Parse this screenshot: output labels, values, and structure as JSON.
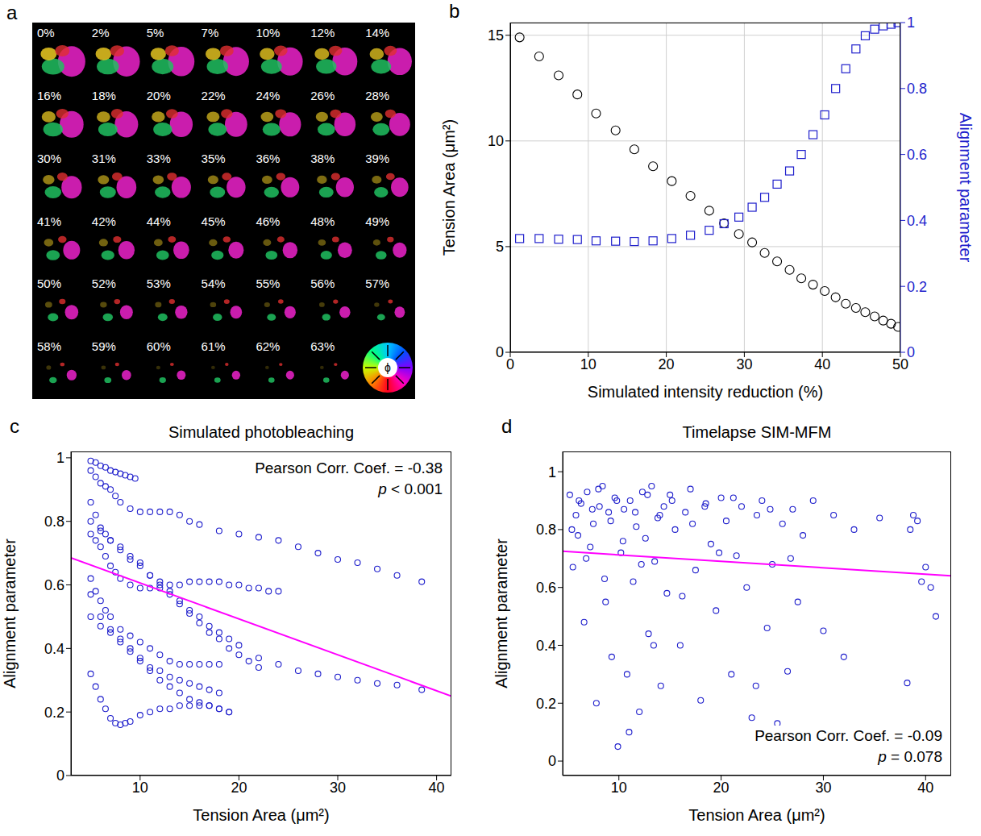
{
  "image_panel": {
    "panel": "a",
    "type": "image_grid",
    "tiles": [
      "0%",
      "2%",
      "5%",
      "7%",
      "10%",
      "12%",
      "14%",
      "16%",
      "18%",
      "20%",
      "22%",
      "24%",
      "26%",
      "28%",
      "30%",
      "31%",
      "33%",
      "35%",
      "36%",
      "38%",
      "39%",
      "41%",
      "42%",
      "44%",
      "45%",
      "46%",
      "48%",
      "49%",
      "50%",
      "52%",
      "53%",
      "54%",
      "55%",
      "56%",
      "57%",
      "58%",
      "59%",
      "60%",
      "61%",
      "62%",
      "63%"
    ],
    "colorwheel_label": "ϕ"
  },
  "chart_data": [
    {
      "panel": "b",
      "type": "scatter",
      "xlabel": "Simulated intensity reduction (%)",
      "ylabel": "Tension Area (μm²)",
      "y2label": "Alignment parameter",
      "xlim": [
        0,
        50
      ],
      "xticks": [
        0,
        10,
        20,
        30,
        40,
        50
      ],
      "ylim": [
        0,
        15.6
      ],
      "yticks": [
        0,
        5,
        10,
        15
      ],
      "y2lim": [
        0,
        1
      ],
      "y2ticks": [
        0,
        0.2,
        0.4,
        0.6,
        0.8,
        1
      ],
      "grid": true,
      "x": [
        1.2,
        3.7,
        6.2,
        8.6,
        11.0,
        13.5,
        15.9,
        18.3,
        20.7,
        23.1,
        25.5,
        27.4,
        29.3,
        31.0,
        32.6,
        34.2,
        35.8,
        37.3,
        38.8,
        40.3,
        41.7,
        43.0,
        44.3,
        45.5,
        46.7,
        47.8,
        48.8,
        49.7
      ],
      "series": [
        {
          "name": "Tension Area",
          "color": "#000000",
          "marker": "circle",
          "values": [
            14.9,
            14.0,
            13.1,
            12.2,
            11.3,
            10.5,
            9.6,
            8.8,
            8.1,
            7.4,
            6.7,
            6.1,
            5.6,
            5.2,
            4.7,
            4.3,
            3.9,
            3.5,
            3.2,
            2.9,
            2.6,
            2.3,
            2.1,
            1.9,
            1.7,
            1.5,
            1.35,
            1.2
          ]
        },
        {
          "name": "Alignment parameter",
          "axis": "y2",
          "color": "#1f1fcc",
          "marker": "square",
          "values": [
            0.345,
            0.345,
            0.343,
            0.342,
            0.338,
            0.337,
            0.336,
            0.338,
            0.345,
            0.355,
            0.37,
            0.39,
            0.41,
            0.44,
            0.47,
            0.51,
            0.55,
            0.6,
            0.66,
            0.72,
            0.8,
            0.86,
            0.92,
            0.96,
            0.98,
            0.99,
            0.995,
            1.0
          ]
        }
      ]
    },
    {
      "panel": "c",
      "type": "scatter",
      "title": "Simulated photobleaching",
      "xlabel": "Tension Area (μm²)",
      "ylabel": "Alignment parameter",
      "xlim": [
        3,
        41.5
      ],
      "xticks": [
        10,
        20,
        30,
        40
      ],
      "ylim": [
        0,
        1.02
      ],
      "yticks": [
        0,
        0.2,
        0.4,
        0.6,
        0.8,
        1
      ],
      "color": "#1f1fcc",
      "marker": "circle",
      "annotations": [
        "Pearson Corr. Coef. = -0.38",
        "p < 0.001"
      ],
      "fit_line": {
        "color": "#ff00ff",
        "x": [
          3,
          41.5
        ],
        "values": [
          0.685,
          0.25
        ]
      },
      "series": [
        {
          "x": [
            5,
            5.5,
            6,
            6.5,
            7,
            7.5,
            8,
            8.5,
            9,
            9.5
          ],
          "values": [
            0.99,
            0.985,
            0.975,
            0.97,
            0.96,
            0.955,
            0.95,
            0.945,
            0.94,
            0.935
          ]
        },
        {
          "x": [
            5,
            5.5,
            6,
            6.5,
            7,
            7.5,
            8,
            9,
            10,
            11,
            12,
            13,
            14,
            15,
            16,
            18,
            20,
            22,
            24,
            26,
            28,
            30,
            32,
            34,
            36,
            38.5
          ],
          "values": [
            0.96,
            0.94,
            0.92,
            0.91,
            0.9,
            0.88,
            0.86,
            0.84,
            0.83,
            0.83,
            0.83,
            0.83,
            0.82,
            0.8,
            0.79,
            0.77,
            0.76,
            0.75,
            0.74,
            0.72,
            0.7,
            0.68,
            0.67,
            0.65,
            0.63,
            0.61
          ]
        },
        {
          "x": [
            5,
            5.5,
            6,
            6.5,
            7,
            8,
            9,
            10,
            11,
            12,
            13,
            14,
            15,
            16,
            17,
            18,
            19,
            20,
            22,
            24,
            26,
            28,
            30,
            32,
            34,
            36,
            38.5
          ],
          "values": [
            0.86,
            0.82,
            0.78,
            0.76,
            0.74,
            0.71,
            0.68,
            0.66,
            0.63,
            0.61,
            0.58,
            0.55,
            0.52,
            0.5,
            0.47,
            0.45,
            0.43,
            0.41,
            0.37,
            0.35,
            0.33,
            0.32,
            0.31,
            0.3,
            0.29,
            0.285,
            0.27
          ]
        },
        {
          "x": [
            5,
            5.5,
            6,
            6.5,
            7,
            7.5,
            8,
            9,
            10,
            11,
            12,
            13,
            14,
            15,
            16,
            17,
            18,
            19,
            20,
            21,
            22,
            23,
            24
          ],
          "values": [
            0.76,
            0.74,
            0.72,
            0.69,
            0.66,
            0.64,
            0.62,
            0.6,
            0.59,
            0.59,
            0.59,
            0.6,
            0.6,
            0.61,
            0.61,
            0.61,
            0.61,
            0.6,
            0.6,
            0.59,
            0.59,
            0.58,
            0.58
          ]
        },
        {
          "x": [
            5,
            6,
            7,
            8,
            9,
            10,
            11,
            12,
            13,
            14,
            15,
            16,
            17,
            18,
            19,
            20,
            21,
            22
          ],
          "values": [
            0.8,
            0.77,
            0.74,
            0.72,
            0.69,
            0.67,
            0.63,
            0.6,
            0.57,
            0.54,
            0.51,
            0.48,
            0.45,
            0.43,
            0.4,
            0.38,
            0.36,
            0.34
          ]
        },
        {
          "x": [
            5,
            5.5,
            6,
            6.5,
            7,
            8,
            9,
            10,
            11,
            12,
            13,
            14,
            15,
            16,
            17,
            18
          ],
          "values": [
            0.62,
            0.58,
            0.55,
            0.52,
            0.5,
            0.46,
            0.44,
            0.42,
            0.4,
            0.38,
            0.36,
            0.35,
            0.35,
            0.35,
            0.35,
            0.35
          ]
        },
        {
          "x": [
            5,
            6,
            7,
            8,
            9,
            10,
            11,
            12,
            13,
            14,
            15,
            16,
            17,
            18
          ],
          "values": [
            0.5,
            0.47,
            0.45,
            0.42,
            0.39,
            0.36,
            0.34,
            0.33,
            0.31,
            0.3,
            0.29,
            0.28,
            0.27,
            0.26
          ]
        },
        {
          "x": [
            5,
            6,
            7,
            8,
            9,
            10,
            11,
            12,
            13,
            14,
            15,
            16,
            17,
            18,
            19
          ],
          "values": [
            0.57,
            0.5,
            0.46,
            0.43,
            0.4,
            0.37,
            0.33,
            0.3,
            0.28,
            0.26,
            0.24,
            0.23,
            0.22,
            0.21,
            0.2
          ]
        },
        {
          "x": [
            5,
            5.5,
            6,
            6.5,
            7,
            7.5,
            8,
            8.5,
            9,
            10,
            11,
            12,
            13,
            14,
            15,
            16,
            17,
            18,
            19
          ],
          "values": [
            0.32,
            0.28,
            0.24,
            0.21,
            0.18,
            0.165,
            0.16,
            0.165,
            0.17,
            0.19,
            0.2,
            0.21,
            0.21,
            0.22,
            0.22,
            0.22,
            0.22,
            0.21,
            0.2
          ]
        }
      ]
    },
    {
      "panel": "d",
      "type": "scatter",
      "title": "Timelapse SIM-MFM",
      "xlabel": "Tension Area (μm²)",
      "ylabel": "Alignment parameter",
      "xlim": [
        4.5,
        42.5
      ],
      "xticks": [
        10,
        20,
        30,
        40
      ],
      "ylim": [
        -0.05,
        1.07
      ],
      "yticks": [
        0,
        0.2,
        0.4,
        0.6,
        0.8,
        1
      ],
      "color": "#1f1fcc",
      "marker": "circle",
      "annotations": [
        "Pearson Corr. Coef. = -0.09",
        "p = 0.078"
      ],
      "fit_line": {
        "color": "#ff00ff",
        "x": [
          4.5,
          42.5
        ],
        "values": [
          0.725,
          0.64
        ]
      },
      "series": [
        {
          "x": [
            5.2,
            5.5,
            5.8,
            6.0,
            6.3,
            6.6,
            6.9,
            7.2,
            7.5,
            7.8,
            8.1,
            8.4,
            8.7,
            9.0,
            9.3,
            9.6,
            9.9,
            10.2,
            10.5,
            10.8,
            11.1,
            11.4,
            11.7,
            12.0,
            12.3,
            12.6,
            12.9,
            13.2,
            13.5,
            13.8,
            14.1,
            14.4,
            14.7,
            15.0,
            15.5,
            16.0,
            16.5,
            17.0,
            17.5,
            18.0,
            18.5,
            19.0,
            19.5,
            20.0,
            20.5,
            21.0,
            21.5,
            22.0,
            22.5,
            23.0,
            23.5,
            24.0,
            24.5,
            25.0,
            25.5,
            26.0,
            26.5,
            27.0,
            27.5,
            28.0,
            29.0,
            30.0,
            31.0,
            32.0,
            33.0,
            35.5,
            38.2,
            38.5,
            38.8,
            39.2,
            39.6,
            40.0,
            40.5,
            41.0,
            5.4,
            6.1,
            6.8,
            7.4,
            8.0,
            8.6,
            9.2,
            9.8,
            10.4,
            11.0,
            11.6,
            12.2,
            12.8,
            13.4,
            14.0,
            15.2,
            16.2,
            17.2,
            18.4,
            19.8,
            21.2,
            23.4,
            24.8,
            25.7,
            26.8
          ],
          "values": [
            0.92,
            0.67,
            0.85,
            0.78,
            0.89,
            0.48,
            0.93,
            0.74,
            0.82,
            0.2,
            0.88,
            0.95,
            0.55,
            0.86,
            0.36,
            0.91,
            0.05,
            0.72,
            0.87,
            0.3,
            0.9,
            0.62,
            0.81,
            0.17,
            0.93,
            0.77,
            0.44,
            0.95,
            0.69,
            0.84,
            0.26,
            0.88,
            0.58,
            0.92,
            0.8,
            0.4,
            0.86,
            0.94,
            0.66,
            0.21,
            0.89,
            0.75,
            0.52,
            0.91,
            0.83,
            0.3,
            0.71,
            0.88,
            0.6,
            0.15,
            0.85,
            0.9,
            0.46,
            0.68,
            0.13,
            0.82,
            0.31,
            0.87,
            0.55,
            0.78,
            0.9,
            0.45,
            0.85,
            0.36,
            0.8,
            0.84,
            0.27,
            0.8,
            0.85,
            0.83,
            0.62,
            0.67,
            0.6,
            0.5,
            0.8,
            0.9,
            0.7,
            0.87,
            0.94,
            0.63,
            0.83,
            0.9,
            0.76,
            0.1,
            0.86,
            0.68,
            0.92,
            0.4,
            0.85,
            0.9,
            0.57,
            0.82,
            0.88,
            0.72,
            0.91,
            0.26,
            0.87,
            0.11,
            0.7
          ]
        }
      ]
    }
  ]
}
